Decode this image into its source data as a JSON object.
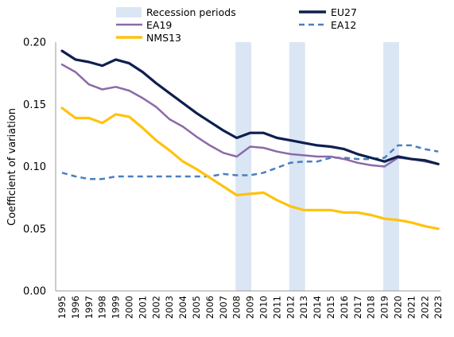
{
  "chart_data": {
    "type": "line",
    "title": "",
    "xlabel": "",
    "ylabel": "Coefficient of variation",
    "ylim": [
      0,
      0.2
    ],
    "yticks": [
      "0.00",
      "0.05",
      "0.10",
      "0.15",
      "0.20"
    ],
    "y_tick_values": [
      0,
      0.05,
      0.1,
      0.15,
      0.2
    ],
    "grid": false,
    "legend_position": "top",
    "categories": [
      "1995",
      "1996",
      "1997",
      "1998",
      "1999",
      "2000",
      "2001",
      "2002",
      "2003",
      "2004",
      "2005",
      "2006",
      "2007",
      "2008",
      "2009",
      "2010",
      "2011",
      "2012",
      "2013",
      "2014",
      "2015",
      "2016",
      "2017",
      "2018",
      "2019",
      "2020",
      "2021",
      "2022",
      "2023"
    ],
    "recession_label": "Recession periods",
    "recession_color": "#dbe6f5",
    "recession_periods": [
      [
        "2008",
        "2009"
      ],
      [
        "2012",
        "2013"
      ],
      [
        "2019",
        "2020"
      ]
    ],
    "series": [
      {
        "name": "EU27",
        "color": "#0e1f4f",
        "style": "solid",
        "values": [
          0.193,
          0.186,
          0.184,
          0.181,
          0.186,
          0.183,
          0.176,
          0.167,
          0.159,
          0.151,
          0.143,
          0.136,
          0.129,
          0.123,
          0.127,
          0.127,
          0.123,
          0.121,
          0.119,
          0.117,
          0.116,
          0.114,
          0.11,
          0.107,
          0.104,
          0.108,
          0.106,
          0.105,
          0.102
        ]
      },
      {
        "name": "EA12",
        "color": "#4a7fc0",
        "style": "dashed",
        "values": [
          0.095,
          0.092,
          0.09,
          0.09,
          0.092,
          0.092,
          0.092,
          0.092,
          0.092,
          0.092,
          0.092,
          0.092,
          0.094,
          0.093,
          0.093,
          0.095,
          0.099,
          0.103,
          0.104,
          0.104,
          0.107,
          0.107,
          0.106,
          0.106,
          0.107,
          0.117,
          0.117,
          0.114,
          0.112
        ]
      },
      {
        "name": "EA19",
        "color": "#8b6aa8",
        "style": "solid",
        "values": [
          0.182,
          0.176,
          0.166,
          0.162,
          0.164,
          0.161,
          0.155,
          0.148,
          0.138,
          0.132,
          0.124,
          0.117,
          0.111,
          0.108,
          0.116,
          0.115,
          0.112,
          0.11,
          0.109,
          0.108,
          0.108,
          0.106,
          0.103,
          0.101,
          0.1,
          0.107,
          0.106,
          0.104,
          0.102
        ]
      },
      {
        "name": "NMS13",
        "color": "#ffc20e",
        "style": "solid",
        "values": [
          0.147,
          0.139,
          0.139,
          0.135,
          0.142,
          0.14,
          0.131,
          0.121,
          0.113,
          0.104,
          0.098,
          0.091,
          0.084,
          0.077,
          0.078,
          0.079,
          0.073,
          0.068,
          0.065,
          0.065,
          0.065,
          0.063,
          0.063,
          0.061,
          0.058,
          0.057,
          0.055,
          0.052,
          0.05
        ]
      }
    ]
  }
}
